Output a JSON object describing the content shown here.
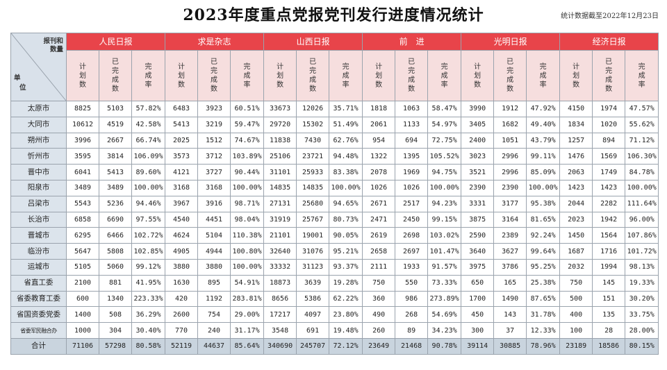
{
  "title": "2023年度重点党报党刊发行进度情况统计",
  "as_of": "统计数据截至2022年12月23日",
  "header": {
    "corner_top": [
      "报刊和",
      "数量"
    ],
    "corner_bottom": [
      "单",
      "位"
    ],
    "publications": [
      "人民日报",
      "求是杂志",
      "山西日报",
      "前　进",
      "光明日报",
      "经济日报"
    ],
    "sub": [
      "计划数",
      "已完成数",
      "完成率"
    ]
  },
  "rows": [
    {
      "unit": "太原市",
      "values": [
        "8825",
        "5103",
        "57.82%",
        "6483",
        "3923",
        "60.51%",
        "33673",
        "12026",
        "35.71%",
        "1818",
        "1063",
        "58.47%",
        "3990",
        "1912",
        "47.92%",
        "4150",
        "1974",
        "47.57%"
      ]
    },
    {
      "unit": "大同市",
      "values": [
        "10612",
        "4519",
        "42.58%",
        "5413",
        "3219",
        "59.47%",
        "29720",
        "15302",
        "51.49%",
        "2061",
        "1133",
        "54.97%",
        "3405",
        "1682",
        "49.40%",
        "1834",
        "1020",
        "55.62%"
      ]
    },
    {
      "unit": "朔州市",
      "values": [
        "3996",
        "2667",
        "66.74%",
        "2025",
        "1512",
        "74.67%",
        "11838",
        "7430",
        "62.76%",
        "954",
        "694",
        "72.75%",
        "2400",
        "1051",
        "43.79%",
        "1257",
        "894",
        "71.12%"
      ]
    },
    {
      "unit": "忻州市",
      "values": [
        "3595",
        "3814",
        "106.09%",
        "3573",
        "3712",
        "103.89%",
        "25106",
        "23721",
        "94.48%",
        "1322",
        "1395",
        "105.52%",
        "3023",
        "2996",
        "99.11%",
        "1476",
        "1569",
        "106.30%"
      ]
    },
    {
      "unit": "晋中市",
      "values": [
        "6041",
        "5413",
        "89.60%",
        "4121",
        "3727",
        "90.44%",
        "31101",
        "25933",
        "83.38%",
        "2078",
        "1969",
        "94.75%",
        "3521",
        "2996",
        "85.09%",
        "2063",
        "1749",
        "84.78%"
      ]
    },
    {
      "unit": "阳泉市",
      "values": [
        "3489",
        "3489",
        "100.00%",
        "3168",
        "3168",
        "100.00%",
        "14835",
        "14835",
        "100.00%",
        "1026",
        "1026",
        "100.00%",
        "2390",
        "2390",
        "100.00%",
        "1423",
        "1423",
        "100.00%"
      ]
    },
    {
      "unit": "吕梁市",
      "values": [
        "5543",
        "5236",
        "94.46%",
        "3967",
        "3916",
        "98.71%",
        "27131",
        "25680",
        "94.65%",
        "2671",
        "2517",
        "94.23%",
        "3331",
        "3177",
        "95.38%",
        "2044",
        "2282",
        "111.64%"
      ]
    },
    {
      "unit": "长治市",
      "values": [
        "6858",
        "6690",
        "97.55%",
        "4540",
        "4451",
        "98.04%",
        "31919",
        "25767",
        "80.73%",
        "2471",
        "2450",
        "99.15%",
        "3875",
        "3164",
        "81.65%",
        "2023",
        "1942",
        "96.00%"
      ]
    },
    {
      "unit": "晋城市",
      "values": [
        "6295",
        "6466",
        "102.72%",
        "4624",
        "5104",
        "110.38%",
        "21101",
        "19001",
        "90.05%",
        "2619",
        "2698",
        "103.02%",
        "2590",
        "2389",
        "92.24%",
        "1450",
        "1564",
        "107.86%"
      ]
    },
    {
      "unit": "临汾市",
      "values": [
        "5647",
        "5808",
        "102.85%",
        "4905",
        "4944",
        "100.80%",
        "32640",
        "31076",
        "95.21%",
        "2658",
        "2697",
        "101.47%",
        "3640",
        "3627",
        "99.64%",
        "1687",
        "1716",
        "101.72%"
      ]
    },
    {
      "unit": "运城市",
      "values": [
        "5105",
        "5060",
        "99.12%",
        "3880",
        "3880",
        "100.00%",
        "33332",
        "31123",
        "93.37%",
        "2111",
        "1933",
        "91.57%",
        "3975",
        "3786",
        "95.25%",
        "2032",
        "1994",
        "98.13%"
      ]
    },
    {
      "unit": "省直工委",
      "values": [
        "2100",
        "881",
        "41.95%",
        "1630",
        "895",
        "54.91%",
        "18873",
        "3639",
        "19.28%",
        "750",
        "550",
        "73.33%",
        "650",
        "165",
        "25.38%",
        "750",
        "145",
        "19.33%"
      ]
    },
    {
      "unit": "省委教育工委",
      "values": [
        "600",
        "1340",
        "223.33%",
        "420",
        "1192",
        "283.81%",
        "8656",
        "5386",
        "62.22%",
        "360",
        "986",
        "273.89%",
        "1700",
        "1490",
        "87.65%",
        "500",
        "151",
        "30.20%"
      ]
    },
    {
      "unit": "省国资委党委",
      "values": [
        "1400",
        "508",
        "36.29%",
        "2600",
        "754",
        "29.00%",
        "17217",
        "4097",
        "23.80%",
        "490",
        "268",
        "54.69%",
        "450",
        "143",
        "31.78%",
        "400",
        "135",
        "33.75%"
      ]
    },
    {
      "unit": "省委军民融合办",
      "values": [
        "1000",
        "304",
        "30.40%",
        "770",
        "240",
        "31.17%",
        "3548",
        "691",
        "19.48%",
        "260",
        "89",
        "34.23%",
        "300",
        "37",
        "12.33%",
        "100",
        "28",
        "28.00%"
      ]
    }
  ],
  "total": {
    "unit": "合计",
    "values": [
      "71106",
      "57298",
      "80.58%",
      "52119",
      "44637",
      "85.64%",
      "340690",
      "245707",
      "72.12%",
      "23649",
      "21468",
      "90.78%",
      "39114",
      "30885",
      "78.96%",
      "23189",
      "18586",
      "80.15%"
    ]
  }
}
